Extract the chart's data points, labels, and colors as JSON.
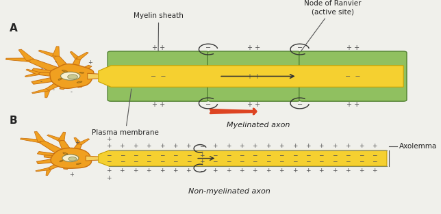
{
  "background_color": "#f0f0eb",
  "neuron_orange": "#f0a020",
  "neuron_dark": "#c87010",
  "neuron_light": "#f8c050",
  "axon_yellow": "#f5d020",
  "axon_dark": "#c8a800",
  "myelin_green": "#90c060",
  "myelin_dark": "#508030",
  "nucleus_fill": "#ffffff",
  "nucleolus_fill": "#c0c0c0",
  "text_color": "#222222",
  "arrow_color_red": "#dd4422",
  "sign_color": "#555555",
  "label_A": "A",
  "label_B": "B",
  "title_myelinated": "Myelinated axon",
  "title_unmyelinated": "Non-myelinated axon",
  "label_myelin_sheath": "Myelin sheath",
  "label_plasma_membrane": "Plasma membrane",
  "label_node_ranvier": "Node of Ranvier\n(active site)",
  "label_axolemma": "Axolemma",
  "fig_width": 6.44,
  "fig_height": 3.13,
  "dpi": 100
}
